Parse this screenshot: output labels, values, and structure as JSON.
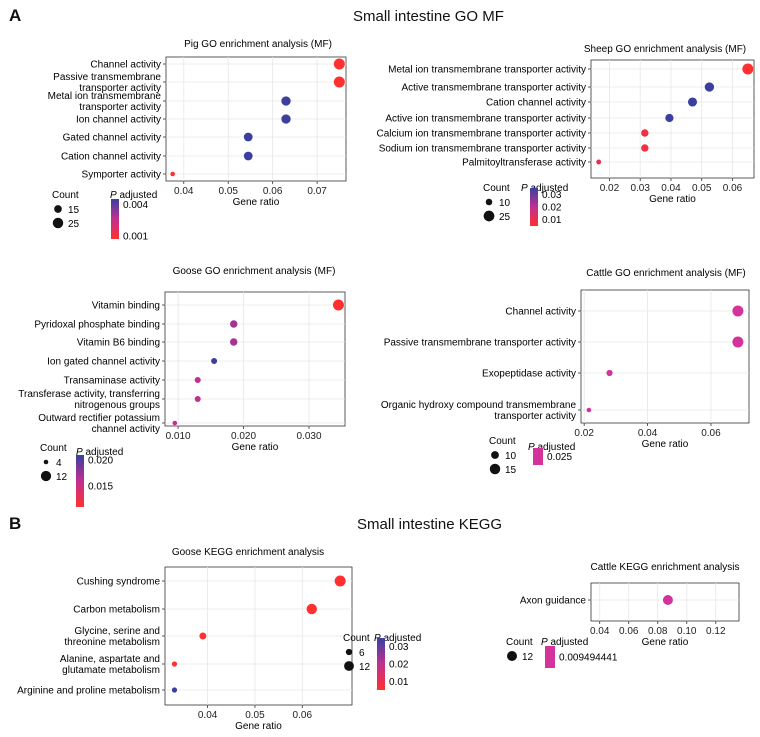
{
  "panel_a": {
    "letter": "A",
    "title": "Small intestine GO MF"
  },
  "panel_b": {
    "letter": "B",
    "title": "Small intestine KEGG"
  },
  "colors": {
    "low_p": "#ff3030",
    "mid_p": "#c03090",
    "high_p": "#3a3fa0",
    "magenta": "#d4339c",
    "grid": "#e6e6e6"
  },
  "chart_data": [
    {
      "id": "pig",
      "type": "scatter",
      "title": "Pig  GO enrichment analysis (MF)",
      "xlabel": "Gene ratio",
      "xlim": [
        0.036,
        0.0765
      ],
      "xticks": [
        0.04,
        0.05,
        0.06,
        0.07
      ],
      "xtick_labels": [
        "0.04",
        "0.05",
        "0.06",
        "0.07"
      ],
      "size_range": [
        4,
        27
      ],
      "points": [
        {
          "term": "Channel activity",
          "x": 0.075,
          "count": 27,
          "p_adjusted": 0.0008
        },
        {
          "term": "Passive transmembrane transporter activity",
          "x": 0.075,
          "count": 27,
          "p_adjusted": 0.0008
        },
        {
          "term": "Metal ion transmembrane transporter activity",
          "x": 0.063,
          "count": 21,
          "p_adjusted": 0.0045
        },
        {
          "term": "Ion channel activity",
          "x": 0.063,
          "count": 21,
          "p_adjusted": 0.0045
        },
        {
          "term": "Gated channel activity",
          "x": 0.0545,
          "count": 19,
          "p_adjusted": 0.0045
        },
        {
          "term": "Cation channel activity",
          "x": 0.0545,
          "count": 19,
          "p_adjusted": 0.0045
        },
        {
          "term": "Symporter activity",
          "x": 0.0375,
          "count": 4,
          "p_adjusted": 0.0008
        }
      ],
      "legend": {
        "count_title": "Count",
        "count_values": [
          15,
          25
        ],
        "p_title_italic": "P",
        "p_title_rest": " adjusted",
        "p_ticks": [
          "0.004",
          "0.001"
        ],
        "p_range": [
          0.001,
          0.0045
        ]
      }
    },
    {
      "id": "sheep",
      "type": "scatter",
      "title": "Sheep  GO enrichment analysis (MF)",
      "xlabel": "Gene ratio",
      "xlim": [
        0.014,
        0.067
      ],
      "xticks": [
        0.02,
        0.03,
        0.04,
        0.05,
        0.06
      ],
      "xtick_labels": [
        "0.02",
        "0.03",
        "0.04",
        "0.05",
        "0.06"
      ],
      "size_range": [
        3,
        26
      ],
      "points": [
        {
          "term": "Metal ion transmembrane transporter activity",
          "x": 0.065,
          "count": 26,
          "p_adjusted": 0.005
        },
        {
          "term": "Active transmembrane transporter activity",
          "x": 0.0525,
          "count": 20,
          "p_adjusted": 0.035
        },
        {
          "term": "Cation channel activity",
          "x": 0.047,
          "count": 19,
          "p_adjusted": 0.035
        },
        {
          "term": "Active ion transmembrane transporter activity",
          "x": 0.0395,
          "count": 16,
          "p_adjusted": 0.035
        },
        {
          "term": "Calcium ion transmembrane transporter activity",
          "x": 0.0315,
          "count": 13,
          "p_adjusted": 0.008
        },
        {
          "term": "Sodium ion transmembrane transporter activity",
          "x": 0.0315,
          "count": 13,
          "p_adjusted": 0.008
        },
        {
          "term": "Palmitoyltransferase activity",
          "x": 0.0165,
          "count": 4,
          "p_adjusted": 0.012
        }
      ],
      "legend": {
        "count_title": "Count",
        "count_values": [
          10,
          25
        ],
        "p_title_italic": "P",
        "p_title_rest": " adjusted",
        "p_ticks": [
          "0.03",
          "0.02",
          "0.01"
        ],
        "p_range": [
          0.005,
          0.035
        ]
      }
    },
    {
      "id": "goose-go",
      "type": "scatter",
      "title": "Goose  GO enrichment analysis (MF)",
      "xlabel": "Gene ratio",
      "xlim": [
        0.008,
        0.0355
      ],
      "xticks": [
        0.01,
        0.02,
        0.03
      ],
      "xtick_labels": [
        "0.010",
        "0.020",
        "0.030"
      ],
      "size_range": [
        4,
        13
      ],
      "points": [
        {
          "term": "Vitamin binding",
          "x": 0.0345,
          "count": 13,
          "p_adjusted": 0.011
        },
        {
          "term": "Pyridoxal phosphate binding",
          "x": 0.0185,
          "count": 8,
          "p_adjusted": 0.017
        },
        {
          "term": "Vitamin B6 binding",
          "x": 0.0185,
          "count": 8,
          "p_adjusted": 0.017
        },
        {
          "term": "Ion gated channel activity",
          "x": 0.0155,
          "count": 6,
          "p_adjusted": 0.021
        },
        {
          "term": "Transaminase activity",
          "x": 0.013,
          "count": 6,
          "p_adjusted": 0.016
        },
        {
          "term": "Transferase activity, transferring nitrogenous groups",
          "x": 0.013,
          "count": 6,
          "p_adjusted": 0.016
        },
        {
          "term": "Outward rectifier potassium channel activity",
          "x": 0.0095,
          "count": 4,
          "p_adjusted": 0.016
        }
      ],
      "legend": {
        "count_title": "Count",
        "count_values": [
          4,
          12
        ],
        "p_title_italic": "P",
        "p_title_rest": " adjusted",
        "p_ticks": [
          "0.020",
          "0.015"
        ],
        "p_range": [
          0.011,
          0.021
        ]
      }
    },
    {
      "id": "cattle-go",
      "type": "scatter",
      "title": "Cattle GO enrichment analysis (MF)",
      "xlabel": "Gene ratio",
      "xlim": [
        0.019,
        0.072
      ],
      "xticks": [
        0.02,
        0.04,
        0.06
      ],
      "xtick_labels": [
        "0.02",
        "0.04",
        "0.06"
      ],
      "size_range": [
        4,
        16
      ],
      "points": [
        {
          "term": "Channel activity",
          "x": 0.0685,
          "count": 16,
          "p_adjusted": 0.025
        },
        {
          "term": "Passive transmembrane transporter activity",
          "x": 0.0685,
          "count": 16,
          "p_adjusted": 0.025
        },
        {
          "term": "Exopeptidase activity",
          "x": 0.028,
          "count": 7,
          "p_adjusted": 0.025
        },
        {
          "term": "Organic hydroxy compound transmembrane transporter activity",
          "x": 0.0215,
          "count": 4,
          "p_adjusted": 0.025
        }
      ],
      "legend": {
        "count_title": "Count",
        "count_values": [
          10,
          15
        ],
        "p_title_italic": "P",
        "p_title_rest": " adjusted",
        "p_ticks": [
          "0.025"
        ],
        "p_range": [
          0.025,
          0.025
        ]
      }
    },
    {
      "id": "goose-kegg",
      "type": "scatter",
      "title": "Goose  KEGG enrichment analysis",
      "xlabel": "Gene ratio",
      "xlim": [
        0.031,
        0.0705
      ],
      "xticks": [
        0.04,
        0.05,
        0.06
      ],
      "xtick_labels": [
        "0.04",
        "0.05",
        "0.06"
      ],
      "size_range": [
        3,
        14
      ],
      "points": [
        {
          "term": "Cushing syndrome",
          "x": 0.068,
          "count": 14,
          "p_adjusted": 0.005
        },
        {
          "term": "Carbon metabolism",
          "x": 0.062,
          "count": 13,
          "p_adjusted": 0.005
        },
        {
          "term": "Glycine, serine and threonine metabolism",
          "x": 0.039,
          "count": 7,
          "p_adjusted": 0.005
        },
        {
          "term": "Alanine, aspartate and glutamate metabolism",
          "x": 0.033,
          "count": 4,
          "p_adjusted": 0.005
        },
        {
          "term": "Arginine and proline metabolism",
          "x": 0.033,
          "count": 4,
          "p_adjusted": 0.035
        }
      ],
      "legend": {
        "count_title": "Count",
        "count_values": [
          6,
          12
        ],
        "p_title_italic": "P",
        "p_title_rest": " adjusted",
        "p_ticks": [
          "0.03",
          "0.02",
          "0.01"
        ],
        "p_range": [
          0.005,
          0.035
        ]
      }
    },
    {
      "id": "cattle-kegg",
      "type": "scatter",
      "title": "Cattle  KEGG enrichment analysis",
      "xlabel": "Gene ratio",
      "xlim": [
        0.034,
        0.136
      ],
      "xticks": [
        0.04,
        0.06,
        0.08,
        0.1,
        0.12
      ],
      "xtick_labels": [
        "0.04",
        "0.06",
        "0.08",
        "0.10",
        "0.12"
      ],
      "size_range": [
        12,
        12
      ],
      "points": [
        {
          "term": "Axon guidance",
          "x": 0.087,
          "count": 12,
          "p_adjusted": 0.009494441
        }
      ],
      "legend": {
        "count_title": "Count",
        "count_values": [
          12
        ],
        "p_title_italic": "P",
        "p_title_rest": " adjusted",
        "p_ticks": [
          "0.009494441"
        ],
        "p_range": [
          0.009494441,
          0.009494441
        ]
      }
    }
  ]
}
